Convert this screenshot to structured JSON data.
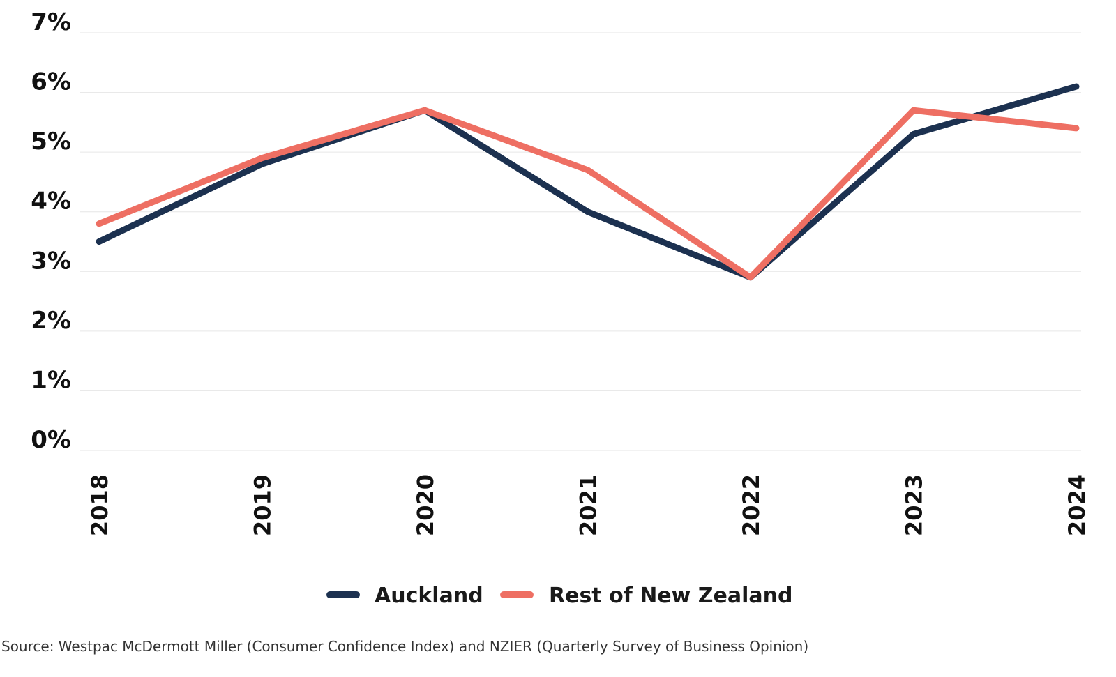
{
  "chart_data": {
    "type": "line",
    "x": [
      "2018",
      "2019",
      "2020",
      "2021",
      "2022",
      "2023",
      "2024"
    ],
    "series": [
      {
        "name": "Auckland",
        "color": "#1c3150",
        "values": [
          3.5,
          4.8,
          5.7,
          4.0,
          2.9,
          5.3,
          6.1
        ]
      },
      {
        "name": "Rest of New Zealand",
        "color": "#ee6f63",
        "values": [
          3.8,
          4.9,
          5.7,
          4.7,
          2.9,
          5.7,
          5.4
        ]
      }
    ],
    "yticks": [
      "0%",
      "1%",
      "2%",
      "3%",
      "4%",
      "5%",
      "6%",
      "7%"
    ],
    "ylim": [
      0,
      7
    ],
    "grid": true,
    "legend_position": "bottom-center",
    "source": "Source: Westpac McDermott Miller (Consumer Confidence Index) and NZIER (Quarterly Survey of Business Opinion)"
  }
}
